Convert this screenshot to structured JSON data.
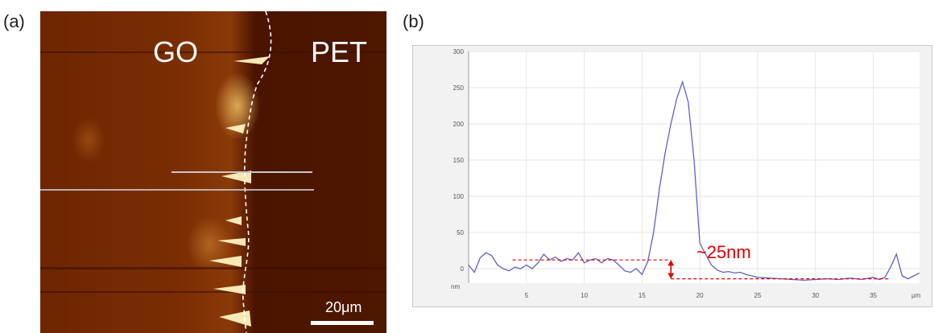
{
  "panels": {
    "a": {
      "label": "(a)",
      "left_material": "GO",
      "right_material": "PET",
      "scale_bar": "20μm"
    },
    "b": {
      "label": "(b)"
    }
  },
  "chart_data": {
    "type": "line",
    "title": "",
    "xlabel": "",
    "ylabel": "",
    "x_unit": "μm",
    "y_unit": "nm",
    "xlim": [
      0,
      39
    ],
    "ylim": [
      -20,
      300
    ],
    "x_ticks": [
      5,
      10,
      15,
      20,
      25,
      30,
      35
    ],
    "y_ticks": [
      0,
      50,
      100,
      150,
      200,
      250,
      300
    ],
    "grid": true,
    "color": "#6060c8",
    "series": [
      {
        "x": [
          0,
          0.5,
          1,
          1.5,
          2,
          2.5,
          3,
          3.5,
          4,
          4.5,
          5,
          5.5,
          6,
          6.5,
          7,
          7.5,
          8,
          8.5,
          9,
          9.5,
          10,
          10.5,
          11,
          11.5,
          12,
          12.5,
          13,
          13.5,
          14,
          14.5,
          15,
          15.5,
          16,
          16.5,
          17,
          17.5,
          18,
          18.5,
          19,
          19.5,
          20,
          20.5,
          21,
          21.5,
          22,
          22.5,
          23,
          23.5,
          24,
          24.5,
          25,
          26,
          27,
          28,
          29,
          30,
          31,
          32,
          33,
          34,
          35,
          35.5,
          36,
          36.5,
          37,
          37.5,
          38,
          38.5,
          39
        ],
        "y": [
          5,
          -5,
          15,
          22,
          18,
          5,
          0,
          -3,
          2,
          0,
          5,
          0,
          8,
          20,
          12,
          16,
          10,
          14,
          12,
          22,
          8,
          12,
          14,
          8,
          14,
          12,
          5,
          -3,
          -5,
          0,
          -8,
          10,
          50,
          110,
          160,
          200,
          235,
          258,
          230,
          150,
          35,
          20,
          5,
          -2,
          -5,
          -4,
          -6,
          -5,
          -8,
          -10,
          -12,
          -13,
          -14,
          -15,
          -16,
          -15,
          -14,
          -15,
          -13,
          -15,
          -12,
          -15,
          -12,
          2,
          20,
          -10,
          -14,
          -10,
          -6
        ]
      }
    ],
    "annotations": [
      {
        "text": "~25nm"
      }
    ]
  }
}
